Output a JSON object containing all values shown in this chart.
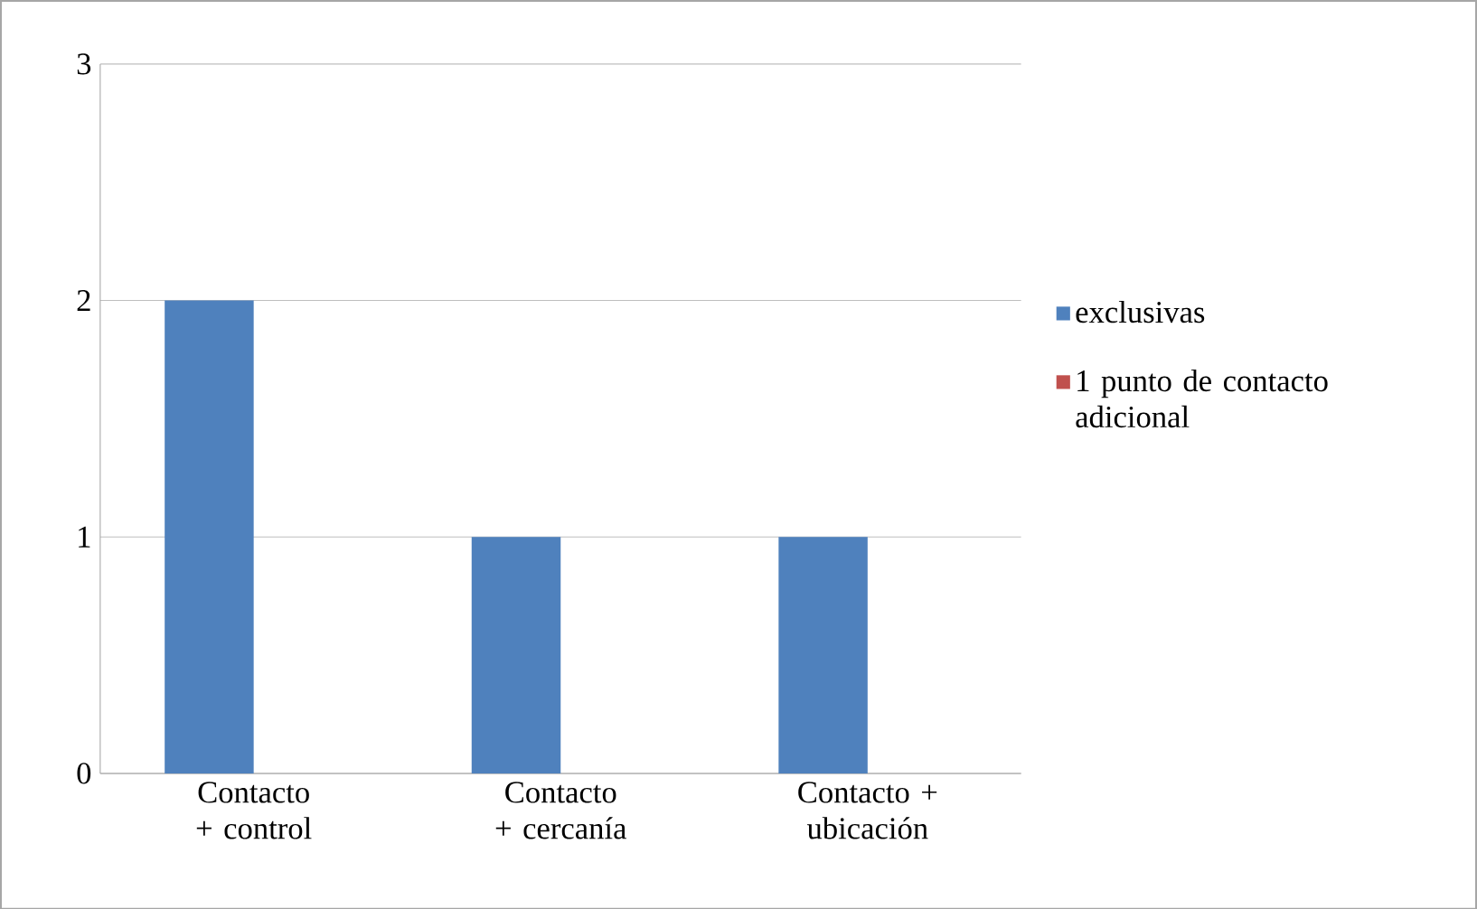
{
  "chart_data": {
    "type": "bar",
    "categories": [
      "Contacto + control",
      "Contacto + cercanía",
      "Contacto + ubicación"
    ],
    "series": [
      {
        "name": "exclusivas",
        "color": "#4f81bd",
        "values": [
          2,
          1,
          1
        ]
      },
      {
        "name": "1 punto de contacto adicional",
        "color": "#c0504d",
        "values": [
          0,
          0,
          0
        ]
      }
    ],
    "ylim": [
      0,
      3
    ],
    "yticks": [
      0,
      1,
      2,
      3
    ],
    "grid": "y",
    "legend": "right"
  }
}
